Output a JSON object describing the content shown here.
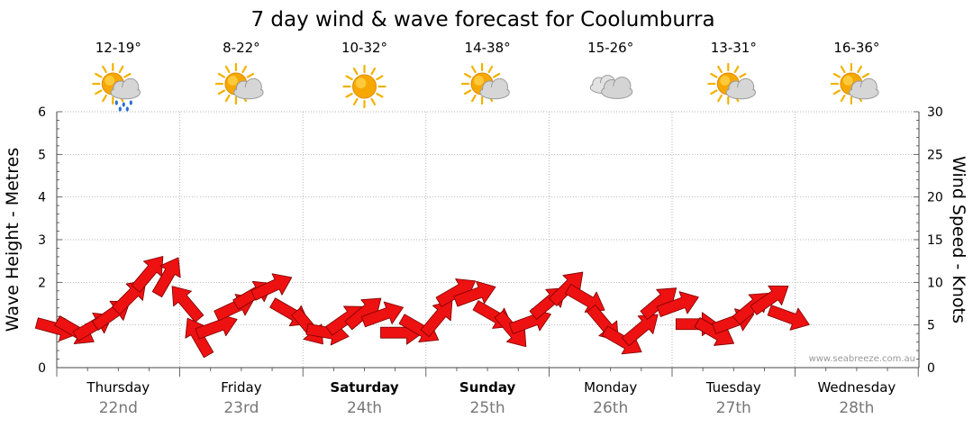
{
  "title": "7 day wind & wave forecast for Coolumburra",
  "credit": "www.seabreeze.com.au",
  "days": [
    {
      "name": "Thursday",
      "date": "22nd",
      "temp": "12-19°",
      "icon": "sun-cloud-rain-icon",
      "bold": false
    },
    {
      "name": "Friday",
      "date": "23rd",
      "temp": "8-22°",
      "icon": "sun-cloud-icon",
      "bold": false
    },
    {
      "name": "Saturday",
      "date": "24th",
      "temp": "10-32°",
      "icon": "sun-icon",
      "bold": true
    },
    {
      "name": "Sunday",
      "date": "25th",
      "temp": "14-38°",
      "icon": "sun-cloud-icon",
      "bold": true
    },
    {
      "name": "Monday",
      "date": "26th",
      "temp": "15-26°",
      "icon": "cloud-icon",
      "bold": false
    },
    {
      "name": "Tuesday",
      "date": "27th",
      "temp": "13-31°",
      "icon": "sun-cloud-icon",
      "bold": false
    },
    {
      "name": "Wednesday",
      "date": "28th",
      "temp": "16-36°",
      "icon": "sun-cloud-icon",
      "bold": false
    }
  ],
  "chart_data": {
    "type": "line",
    "title": "7 day wind & wave forecast for Coolumburra",
    "ylabel": "Wave Height - Metres",
    "y2label": "Wind Speed - Knots",
    "ylim": [
      0,
      6
    ],
    "y2lim": [
      0,
      30
    ],
    "yticks": [
      "0",
      "1",
      "2",
      "3",
      "4",
      "5",
      "6"
    ],
    "y2ticks": [
      "0",
      "5",
      "10",
      "15",
      "20",
      "25",
      "30"
    ],
    "categories": [
      "Thursday 22nd",
      "Friday 23rd",
      "Saturday 24th",
      "Sunday 25th",
      "Monday 26th",
      "Tuesday 27th",
      "Wednesday 28th"
    ],
    "grid": true,
    "series": [
      {
        "name": "Wind Speed",
        "marker": "wind-direction-arrow",
        "color": "#ee1111",
        "points": [
          {
            "x": 0.0,
            "y": 4.6,
            "dir": 285
          },
          {
            "x": 0.15,
            "y": 4.3,
            "dir": 300
          },
          {
            "x": 0.3,
            "y": 4.9,
            "dir": 240
          },
          {
            "x": 0.45,
            "y": 6.3,
            "dir": 235
          },
          {
            "x": 0.6,
            "y": 8.4,
            "dir": 225
          },
          {
            "x": 0.75,
            "y": 11.1,
            "dir": 220
          },
          {
            "x": 0.9,
            "y": 10.7,
            "dir": 210
          },
          {
            "x": 1.05,
            "y": 7.6,
            "dir": 140
          },
          {
            "x": 1.15,
            "y": 3.6,
            "dir": 150
          },
          {
            "x": 1.3,
            "y": 4.8,
            "dir": 250
          },
          {
            "x": 1.45,
            "y": 7.1,
            "dir": 245
          },
          {
            "x": 1.6,
            "y": 8.6,
            "dir": 240
          },
          {
            "x": 1.75,
            "y": 9.5,
            "dir": 245
          },
          {
            "x": 1.9,
            "y": 6.4,
            "dir": 300
          },
          {
            "x": 2.05,
            "y": 4.7,
            "dir": 320
          },
          {
            "x": 2.2,
            "y": 4.1,
            "dir": 280
          },
          {
            "x": 2.35,
            "y": 5.7,
            "dir": 235
          },
          {
            "x": 2.5,
            "y": 6.5,
            "dir": 230
          },
          {
            "x": 2.65,
            "y": 6.2,
            "dir": 250
          },
          {
            "x": 2.8,
            "y": 4.1,
            "dir": 270
          },
          {
            "x": 2.95,
            "y": 4.5,
            "dir": 300
          },
          {
            "x": 3.1,
            "y": 5.9,
            "dir": 220
          },
          {
            "x": 3.25,
            "y": 8.9,
            "dir": 240
          },
          {
            "x": 3.4,
            "y": 8.6,
            "dir": 250
          },
          {
            "x": 3.55,
            "y": 6.1,
            "dir": 300
          },
          {
            "x": 3.7,
            "y": 4.4,
            "dir": 320
          },
          {
            "x": 3.85,
            "y": 5.4,
            "dir": 250
          },
          {
            "x": 4.0,
            "y": 7.7,
            "dir": 230
          },
          {
            "x": 4.15,
            "y": 9.4,
            "dir": 225
          },
          {
            "x": 4.3,
            "y": 8.0,
            "dir": 300
          },
          {
            "x": 4.45,
            "y": 5.1,
            "dir": 320
          },
          {
            "x": 4.6,
            "y": 3.1,
            "dir": 300
          },
          {
            "x": 4.75,
            "y": 4.6,
            "dir": 230
          },
          {
            "x": 4.9,
            "y": 7.7,
            "dir": 230
          },
          {
            "x": 5.05,
            "y": 7.4,
            "dir": 250
          },
          {
            "x": 5.2,
            "y": 5.1,
            "dir": 270
          },
          {
            "x": 5.35,
            "y": 4.1,
            "dir": 300
          },
          {
            "x": 5.5,
            "y": 5.4,
            "dir": 250
          },
          {
            "x": 5.65,
            "y": 7.1,
            "dir": 230
          },
          {
            "x": 5.8,
            "y": 8.1,
            "dir": 235
          },
          {
            "x": 5.95,
            "y": 5.9,
            "dir": 290
          }
        ]
      }
    ]
  }
}
